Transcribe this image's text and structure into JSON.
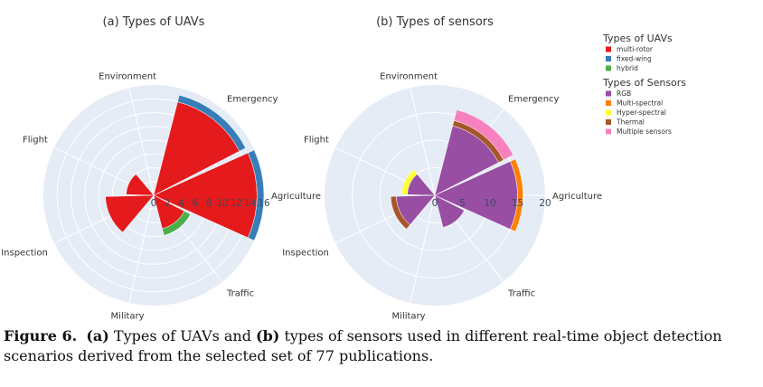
{
  "chart_data": [
    {
      "type": "polar-bar",
      "title": "(a) Types of UAVs",
      "categories": [
        "Agriculture",
        "Emergency",
        "Environment",
        "Flight",
        "Inspection",
        "Military",
        "Traffic"
      ],
      "radial_range": [
        0,
        16
      ],
      "radial_ticks": [
        0,
        2,
        4,
        6,
        8,
        10,
        12,
        14,
        16
      ],
      "series": [
        {
          "name": "multi-rotor",
          "color": "#e41a1c",
          "values": [
            15,
            14,
            0,
            4,
            7,
            0,
            5
          ]
        },
        {
          "name": "fixed-wing",
          "color": "#377eb8",
          "values": [
            1,
            1,
            0,
            0,
            0,
            0,
            0
          ]
        },
        {
          "name": "hybrid",
          "color": "#4daf4a",
          "values": [
            0,
            0,
            0,
            0,
            0,
            0,
            1
          ]
        }
      ]
    },
    {
      "type": "polar-bar",
      "title": "(b) Types of sensors",
      "categories": [
        "Agriculture",
        "Emergency",
        "Environment",
        "Flight",
        "Inspection",
        "Military",
        "Traffic"
      ],
      "radial_range": [
        0,
        20
      ],
      "radial_ticks": [
        0,
        5,
        10,
        15,
        20
      ],
      "series": [
        {
          "name": "RGB",
          "color": "#984ea3",
          "values": [
            15,
            13,
            0,
            5,
            7,
            0,
            6
          ]
        },
        {
          "name": "Multi-spectral",
          "color": "#ff7f00",
          "values": [
            1,
            0,
            0,
            0,
            0,
            0,
            0
          ]
        },
        {
          "name": "Hyper-spectral",
          "color": "#ffff33",
          "values": [
            0,
            0,
            0,
            1,
            0,
            0,
            0
          ]
        },
        {
          "name": "Thermal",
          "color": "#a65628",
          "values": [
            0,
            1,
            0,
            0,
            1,
            0,
            0
          ]
        },
        {
          "name": "Multiple sensors",
          "color": "#f781bf",
          "values": [
            0,
            2,
            0,
            0,
            0,
            0,
            0
          ]
        }
      ]
    }
  ],
  "legend": {
    "uav_title": "Types of UAVs",
    "uav_items": [
      {
        "name": "multi-rotor",
        "color": "#e41a1c"
      },
      {
        "name": "fixed-wing",
        "color": "#377eb8"
      },
      {
        "name": "hybrid",
        "color": "#4daf4a"
      }
    ],
    "sensor_title": "Types of Sensors",
    "sensor_items": [
      {
        "name": "RGB",
        "color": "#984ea3"
      },
      {
        "name": "Multi-spectral",
        "color": "#ff7f00"
      },
      {
        "name": "Hyper-spectral",
        "color": "#ffff33"
      },
      {
        "name": "Thermal",
        "color": "#a65628"
      },
      {
        "name": "Multiple sensors",
        "color": "#f781bf"
      }
    ]
  },
  "caption": {
    "label": "Figure 6.",
    "a": "(a)",
    "text1": " Types of UAVs and ",
    "b": "(b)",
    "text2": " types of sensors used in different real-time object detection scenarios derived from the selected set of 77 publications."
  }
}
